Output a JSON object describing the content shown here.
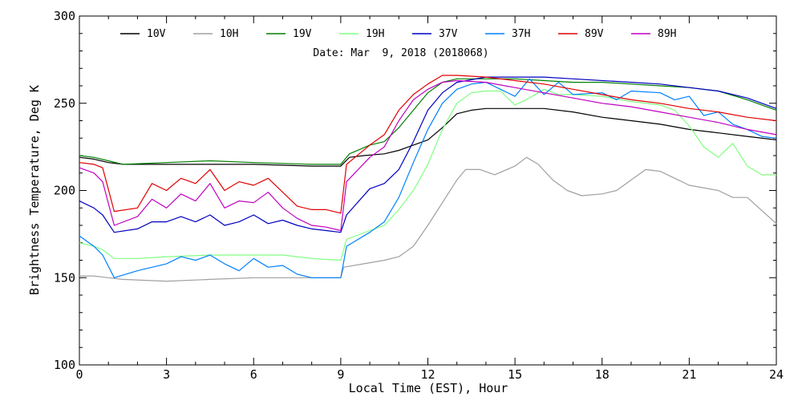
{
  "chart_data": {
    "type": "line",
    "title": "",
    "subtitle": "Date: Mar  9, 2018 (2018068)",
    "xlabel": "Local Time (EST), Hour",
    "ylabel": "Brightness Temperature, Deg K",
    "xlim": [
      0,
      24
    ],
    "ylim": [
      100,
      300
    ],
    "xticks": [
      0,
      3,
      6,
      9,
      12,
      15,
      18,
      21,
      24
    ],
    "yticks": [
      100,
      150,
      200,
      250,
      300
    ],
    "grid": false,
    "legend_position": "top",
    "series": [
      {
        "name": "10V",
        "color": "#000000",
        "points": [
          [
            0,
            219
          ],
          [
            0.5,
            218
          ],
          [
            1,
            216
          ],
          [
            1.5,
            215
          ],
          [
            3,
            215
          ],
          [
            6,
            215
          ],
          [
            8,
            214
          ],
          [
            9,
            214
          ],
          [
            9.3,
            219
          ],
          [
            9.8,
            220
          ],
          [
            10.5,
            221
          ],
          [
            11,
            223
          ],
          [
            11.5,
            226
          ],
          [
            12,
            229
          ],
          [
            12.5,
            236
          ],
          [
            13,
            244
          ],
          [
            13.5,
            246
          ],
          [
            14,
            247
          ],
          [
            15,
            247
          ],
          [
            16,
            247
          ],
          [
            17,
            245
          ],
          [
            18,
            242
          ],
          [
            19,
            240
          ],
          [
            20,
            238
          ],
          [
            21,
            235
          ],
          [
            22,
            233
          ],
          [
            23,
            231
          ],
          [
            24,
            229
          ]
        ]
      },
      {
        "name": "10H",
        "color": "#a0a0a0",
        "points": [
          [
            0,
            151
          ],
          [
            0.5,
            151
          ],
          [
            1,
            150
          ],
          [
            1.5,
            149
          ],
          [
            3,
            148
          ],
          [
            4.5,
            149
          ],
          [
            6,
            150
          ],
          [
            7.5,
            150
          ],
          [
            9,
            150
          ],
          [
            9.1,
            156
          ],
          [
            9.8,
            158
          ],
          [
            10.5,
            160
          ],
          [
            11,
            162
          ],
          [
            11.5,
            168
          ],
          [
            12,
            180
          ],
          [
            12.5,
            193
          ],
          [
            13,
            206
          ],
          [
            13.3,
            212
          ],
          [
            13.8,
            212
          ],
          [
            14.3,
            209
          ],
          [
            15,
            214
          ],
          [
            15.4,
            219
          ],
          [
            15.8,
            215
          ],
          [
            16.3,
            206
          ],
          [
            16.8,
            200
          ],
          [
            17.3,
            197
          ],
          [
            18,
            198
          ],
          [
            18.5,
            200
          ],
          [
            19,
            206
          ],
          [
            19.5,
            212
          ],
          [
            20,
            211
          ],
          [
            20.5,
            207
          ],
          [
            21,
            203
          ],
          [
            22,
            200
          ],
          [
            22.5,
            196
          ],
          [
            23,
            196
          ],
          [
            23.6,
            187
          ],
          [
            24,
            181
          ]
        ]
      },
      {
        "name": "19V",
        "color": "#008000",
        "points": [
          [
            0,
            220
          ],
          [
            0.5,
            219
          ],
          [
            1,
            217
          ],
          [
            1.5,
            215
          ],
          [
            3,
            216
          ],
          [
            4.5,
            217
          ],
          [
            6,
            216
          ],
          [
            8,
            215
          ],
          [
            9,
            215
          ],
          [
            9.3,
            221
          ],
          [
            10,
            226
          ],
          [
            10.5,
            228
          ],
          [
            11,
            236
          ],
          [
            11.5,
            246
          ],
          [
            12,
            256
          ],
          [
            12.5,
            262
          ],
          [
            13,
            264
          ],
          [
            14,
            264
          ],
          [
            15,
            264
          ],
          [
            16,
            263
          ],
          [
            17,
            262
          ],
          [
            18,
            262
          ],
          [
            19,
            261
          ],
          [
            20,
            260
          ],
          [
            21,
            259
          ],
          [
            22,
            257
          ],
          [
            23,
            252
          ],
          [
            24,
            246
          ]
        ]
      },
      {
        "name": "19H",
        "color": "#80ff80",
        "points": [
          [
            0,
            170
          ],
          [
            0.5,
            168
          ],
          [
            0.8,
            166
          ],
          [
            1.2,
            161
          ],
          [
            2,
            161
          ],
          [
            3,
            162
          ],
          [
            4.5,
            163
          ],
          [
            6,
            163
          ],
          [
            7,
            163
          ],
          [
            8,
            161
          ],
          [
            9,
            160
          ],
          [
            9.2,
            172
          ],
          [
            10,
            177
          ],
          [
            10.5,
            180
          ],
          [
            11,
            189
          ],
          [
            11.5,
            200
          ],
          [
            12,
            215
          ],
          [
            12.5,
            235
          ],
          [
            13,
            250
          ],
          [
            13.5,
            256
          ],
          [
            14,
            257
          ],
          [
            14.5,
            257
          ],
          [
            15,
            249
          ],
          [
            15.5,
            253
          ],
          [
            16,
            258
          ],
          [
            16.5,
            255
          ],
          [
            17,
            255
          ],
          [
            18,
            254
          ],
          [
            19,
            251
          ],
          [
            20,
            249
          ],
          [
            20.5,
            246
          ],
          [
            21,
            237
          ],
          [
            21.5,
            225
          ],
          [
            22,
            219
          ],
          [
            22.5,
            227
          ],
          [
            23,
            214
          ],
          [
            23.5,
            209
          ],
          [
            24,
            209
          ]
        ]
      },
      {
        "name": "37V",
        "color": "#0000c0",
        "points": [
          [
            0,
            194
          ],
          [
            0.5,
            190
          ],
          [
            0.8,
            186
          ],
          [
            1.2,
            176
          ],
          [
            2,
            178
          ],
          [
            2.5,
            182
          ],
          [
            3,
            182
          ],
          [
            3.5,
            185
          ],
          [
            4,
            182
          ],
          [
            4.5,
            186
          ],
          [
            5,
            180
          ],
          [
            5.5,
            182
          ],
          [
            6,
            186
          ],
          [
            6.5,
            181
          ],
          [
            7,
            183
          ],
          [
            7.5,
            180
          ],
          [
            8,
            178
          ],
          [
            8.5,
            177
          ],
          [
            9,
            176
          ],
          [
            9.2,
            186
          ],
          [
            10,
            201
          ],
          [
            10.5,
            204
          ],
          [
            11,
            212
          ],
          [
            11.5,
            228
          ],
          [
            12,
            246
          ],
          [
            12.5,
            256
          ],
          [
            13,
            262
          ],
          [
            14,
            265
          ],
          [
            15,
            265
          ],
          [
            16,
            265
          ],
          [
            17,
            264
          ],
          [
            18,
            263
          ],
          [
            19,
            262
          ],
          [
            20,
            261
          ],
          [
            21,
            259
          ],
          [
            22,
            257
          ],
          [
            23,
            253
          ],
          [
            24,
            247
          ]
        ]
      },
      {
        "name": "37H",
        "color": "#0080ff",
        "points": [
          [
            0,
            174
          ],
          [
            0.5,
            168
          ],
          [
            0.8,
            163
          ],
          [
            1.2,
            150
          ],
          [
            2,
            154
          ],
          [
            3,
            158
          ],
          [
            3.5,
            162
          ],
          [
            4,
            160
          ],
          [
            4.5,
            163
          ],
          [
            5,
            158
          ],
          [
            5.5,
            154
          ],
          [
            6,
            161
          ],
          [
            6.5,
            156
          ],
          [
            7,
            157
          ],
          [
            7.5,
            152
          ],
          [
            8,
            150
          ],
          [
            9,
            150
          ],
          [
            9.2,
            168
          ],
          [
            10,
            176
          ],
          [
            10.5,
            182
          ],
          [
            11,
            196
          ],
          [
            11.5,
            216
          ],
          [
            12,
            235
          ],
          [
            12.5,
            250
          ],
          [
            13,
            258
          ],
          [
            13.5,
            261
          ],
          [
            14,
            262
          ],
          [
            14.5,
            258
          ],
          [
            15,
            254
          ],
          [
            15.5,
            264
          ],
          [
            16,
            255
          ],
          [
            16.5,
            262
          ],
          [
            17,
            255
          ],
          [
            18,
            256
          ],
          [
            18.5,
            252
          ],
          [
            19,
            257
          ],
          [
            20,
            256
          ],
          [
            20.5,
            252
          ],
          [
            21,
            254
          ],
          [
            21.5,
            243
          ],
          [
            22,
            245
          ],
          [
            22.5,
            238
          ],
          [
            23,
            235
          ],
          [
            23.5,
            231
          ],
          [
            24,
            230
          ]
        ]
      },
      {
        "name": "89V",
        "color": "#e00000",
        "points": [
          [
            0,
            216
          ],
          [
            0.5,
            215
          ],
          [
            0.8,
            213
          ],
          [
            1.2,
            188
          ],
          [
            2,
            190
          ],
          [
            2.5,
            204
          ],
          [
            3,
            200
          ],
          [
            3.5,
            207
          ],
          [
            4,
            204
          ],
          [
            4.5,
            212
          ],
          [
            5,
            200
          ],
          [
            5.5,
            205
          ],
          [
            6,
            203
          ],
          [
            6.5,
            207
          ],
          [
            7,
            199
          ],
          [
            7.5,
            191
          ],
          [
            8,
            189
          ],
          [
            8.5,
            189
          ],
          [
            9,
            187
          ],
          [
            9.2,
            215
          ],
          [
            10,
            226
          ],
          [
            10.5,
            232
          ],
          [
            11,
            246
          ],
          [
            11.5,
            255
          ],
          [
            12,
            261
          ],
          [
            12.5,
            266
          ],
          [
            13,
            266
          ],
          [
            14,
            265
          ],
          [
            15,
            263
          ],
          [
            16,
            261
          ],
          [
            17,
            258
          ],
          [
            18,
            255
          ],
          [
            19,
            252
          ],
          [
            20,
            250
          ],
          [
            21,
            247
          ],
          [
            22,
            245
          ],
          [
            23,
            242
          ],
          [
            24,
            240
          ]
        ]
      },
      {
        "name": "89H",
        "color": "#c000c0",
        "points": [
          [
            0,
            213
          ],
          [
            0.5,
            210
          ],
          [
            0.8,
            205
          ],
          [
            1.2,
            180
          ],
          [
            2,
            185
          ],
          [
            2.5,
            195
          ],
          [
            3,
            190
          ],
          [
            3.5,
            198
          ],
          [
            4,
            194
          ],
          [
            4.5,
            204
          ],
          [
            5,
            190
          ],
          [
            5.5,
            194
          ],
          [
            6,
            193
          ],
          [
            6.5,
            199
          ],
          [
            7,
            190
          ],
          [
            7.5,
            184
          ],
          [
            8,
            180
          ],
          [
            8.5,
            179
          ],
          [
            9,
            177
          ],
          [
            9.2,
            205
          ],
          [
            10,
            219
          ],
          [
            10.5,
            225
          ],
          [
            11,
            240
          ],
          [
            11.5,
            252
          ],
          [
            12,
            258
          ],
          [
            12.5,
            262
          ],
          [
            13,
            263
          ],
          [
            14,
            262
          ],
          [
            15,
            259
          ],
          [
            16,
            256
          ],
          [
            17,
            253
          ],
          [
            18,
            250
          ],
          [
            19,
            248
          ],
          [
            20,
            245
          ],
          [
            21,
            242
          ],
          [
            22,
            239
          ],
          [
            23,
            235
          ],
          [
            24,
            232
          ]
        ]
      }
    ]
  }
}
